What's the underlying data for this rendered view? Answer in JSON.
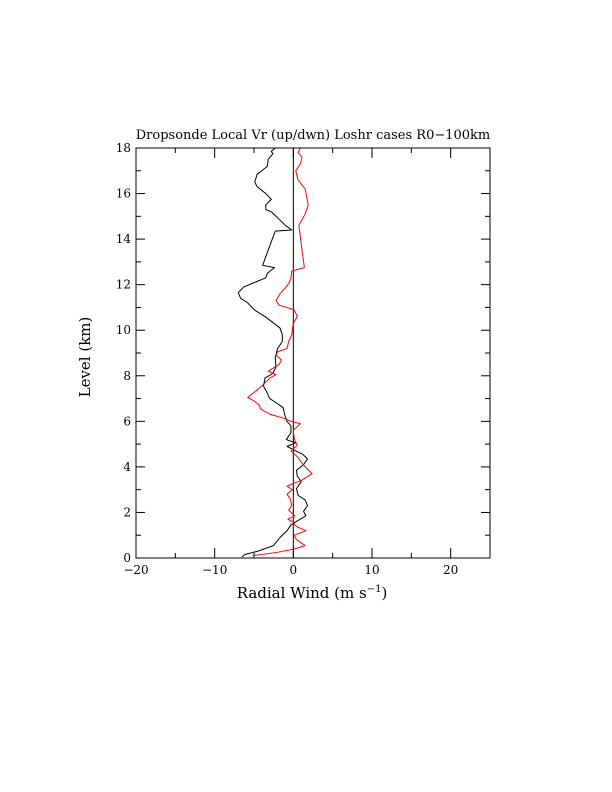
{
  "chart_data": {
    "type": "line",
    "title": "Dropsonde Local Vr (up/dwn) Loshr cases R0−100km",
    "xlabel": "Radial Wind (m s",
    "xlabel_sup": "−1",
    "xlabel_close": ")",
    "ylabel": "Level (km)",
    "xlim": [
      -20,
      25
    ],
    "ylim": [
      0,
      18
    ],
    "x_major_ticks": [
      -20,
      -10,
      0,
      10,
      20
    ],
    "x_minor_step": 5,
    "x_tick_labels": [
      "−20",
      "−10",
      "0",
      "10",
      "20"
    ],
    "y_major_ticks": [
      0,
      2,
      4,
      6,
      8,
      10,
      12,
      14,
      16,
      18
    ],
    "y_minor_step": 1,
    "y_tick_labels": [
      "0",
      "2",
      "4",
      "6",
      "8",
      "10",
      "12",
      "14",
      "16",
      "18"
    ],
    "zero_line": 0,
    "series": [
      {
        "name": "up",
        "color": "#000000",
        "points": [
          [
            -6.5,
            0.05
          ],
          [
            -6.2,
            0.15
          ],
          [
            -4.5,
            0.3
          ],
          [
            -2.5,
            0.55
          ],
          [
            -1.7,
            0.9
          ],
          [
            -0.8,
            1.2
          ],
          [
            -0.3,
            1.45
          ],
          [
            0.6,
            1.65
          ],
          [
            1.6,
            1.85
          ],
          [
            1.3,
            2.05
          ],
          [
            1.8,
            2.3
          ],
          [
            1.5,
            2.55
          ],
          [
            0.6,
            2.75
          ],
          [
            0.4,
            3.05
          ],
          [
            1.0,
            3.35
          ],
          [
            0.5,
            3.6
          ],
          [
            0.4,
            3.85
          ],
          [
            1.3,
            4.1
          ],
          [
            1.8,
            4.35
          ],
          [
            1.2,
            4.55
          ],
          [
            0.3,
            4.7
          ],
          [
            -0.8,
            4.9
          ],
          [
            0.3,
            5.05
          ],
          [
            -0.9,
            5.2
          ],
          [
            -0.3,
            5.5
          ],
          [
            -0.3,
            5.8
          ],
          [
            -0.8,
            6.0
          ],
          [
            -1.1,
            6.3
          ],
          [
            -1.3,
            6.6
          ],
          [
            -2.1,
            6.8
          ],
          [
            -3.0,
            7.0
          ],
          [
            -3.4,
            7.3
          ],
          [
            -3.8,
            7.55
          ],
          [
            -3.6,
            7.9
          ],
          [
            -2.6,
            8.1
          ],
          [
            -2.2,
            8.4
          ],
          [
            -2.3,
            8.8
          ],
          [
            -2.0,
            9.2
          ],
          [
            -1.4,
            9.5
          ],
          [
            -1.4,
            9.8
          ],
          [
            -1.7,
            10.1
          ],
          [
            -3.6,
            10.6
          ],
          [
            -5.0,
            10.9
          ],
          [
            -5.8,
            11.2
          ],
          [
            -6.7,
            11.4
          ],
          [
            -7.0,
            11.65
          ],
          [
            -6.3,
            11.9
          ],
          [
            -3.5,
            12.3
          ],
          [
            -3.3,
            12.5
          ],
          [
            -2.4,
            12.75
          ],
          [
            -3.9,
            12.85
          ],
          [
            -3.0,
            13.7
          ],
          [
            -2.3,
            14.35
          ],
          [
            -0.2,
            14.4
          ],
          [
            -1.0,
            14.6
          ],
          [
            -2.8,
            15.2
          ],
          [
            -3.5,
            15.3
          ],
          [
            -3.5,
            15.5
          ],
          [
            -2.8,
            15.75
          ],
          [
            -3.5,
            16.0
          ],
          [
            -4.6,
            16.3
          ],
          [
            -4.9,
            16.5
          ],
          [
            -4.6,
            16.85
          ],
          [
            -4.0,
            17.0
          ],
          [
            -3.3,
            17.2
          ],
          [
            -3.2,
            17.5
          ],
          [
            -2.6,
            17.75
          ],
          [
            -2.8,
            17.85
          ],
          [
            -2.3,
            18.0
          ]
        ]
      },
      {
        "name": "dwn",
        "color": "#ff0000",
        "points": [
          [
            -5.2,
            0.1
          ],
          [
            -2.0,
            0.25
          ],
          [
            0.2,
            0.4
          ],
          [
            1.5,
            0.55
          ],
          [
            0.4,
            0.8
          ],
          [
            0.1,
            1.0
          ],
          [
            1.6,
            1.2
          ],
          [
            0.6,
            1.35
          ],
          [
            0.2,
            1.45
          ],
          [
            -0.1,
            1.6
          ],
          [
            -0.7,
            1.7
          ],
          [
            0.2,
            1.85
          ],
          [
            -0.6,
            2.1
          ],
          [
            -0.2,
            2.3
          ],
          [
            -0.4,
            2.6
          ],
          [
            -0.8,
            2.8
          ],
          [
            -0.1,
            3.0
          ],
          [
            -0.8,
            3.15
          ],
          [
            0.2,
            3.3
          ],
          [
            1.0,
            3.4
          ],
          [
            2.4,
            3.7
          ],
          [
            1.8,
            3.9
          ],
          [
            1.0,
            4.2
          ],
          [
            0.5,
            4.45
          ],
          [
            -0.3,
            4.7
          ],
          [
            0.5,
            4.95
          ],
          [
            0.2,
            5.15
          ],
          [
            0.1,
            5.3
          ],
          [
            0.0,
            5.6
          ],
          [
            0.9,
            5.9
          ],
          [
            -0.3,
            6.0
          ],
          [
            -1.3,
            6.15
          ],
          [
            -2.9,
            6.3
          ],
          [
            -4.2,
            6.55
          ],
          [
            -4.3,
            6.7
          ],
          [
            -5.0,
            6.9
          ],
          [
            -5.8,
            7.05
          ],
          [
            -4.5,
            7.4
          ],
          [
            -3.7,
            7.65
          ],
          [
            -3.0,
            7.9
          ],
          [
            -2.2,
            8.05
          ],
          [
            -3.2,
            8.2
          ],
          [
            -1.8,
            8.5
          ],
          [
            -1.5,
            8.7
          ],
          [
            -2.2,
            8.9
          ],
          [
            -2.0,
            9.05
          ],
          [
            -0.8,
            9.2
          ],
          [
            -0.6,
            9.5
          ],
          [
            -0.2,
            9.8
          ],
          [
            -0.1,
            10.1
          ],
          [
            0.0,
            10.3
          ],
          [
            0.5,
            10.6
          ],
          [
            0.1,
            10.9
          ],
          [
            -1.8,
            11.1
          ],
          [
            -2.2,
            11.3
          ],
          [
            -1.7,
            11.6
          ],
          [
            -0.9,
            11.9
          ],
          [
            -0.5,
            12.1
          ],
          [
            -0.3,
            12.3
          ],
          [
            -0.2,
            12.6
          ],
          [
            1.4,
            12.75
          ],
          [
            0.7,
            14.6
          ],
          [
            1.5,
            15.1
          ],
          [
            1.9,
            15.5
          ],
          [
            1.5,
            16.2
          ],
          [
            0.6,
            16.6
          ],
          [
            0.3,
            17.0
          ],
          [
            0.9,
            17.3
          ],
          [
            1.1,
            17.6
          ],
          [
            0.6,
            17.8
          ],
          [
            0.9,
            18.0
          ]
        ]
      }
    ]
  }
}
